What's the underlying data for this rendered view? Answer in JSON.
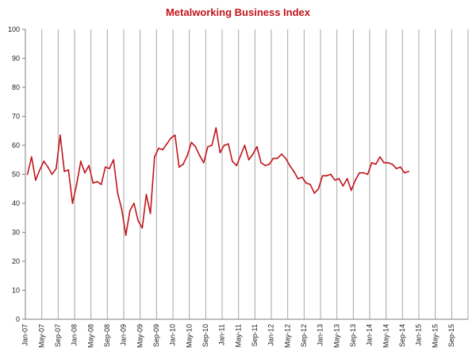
{
  "chart_data": {
    "type": "line",
    "title": "Metalworking Business Index",
    "xlabel": "",
    "ylabel": "",
    "ylim": [
      0,
      100
    ],
    "yticks": [
      0,
      10,
      20,
      30,
      40,
      50,
      60,
      70,
      80,
      90,
      100
    ],
    "x_start": "Jan-07",
    "x_end": "Dec-15",
    "xtick_labels": [
      "Jan-07",
      "May-07",
      "Sep-07",
      "Jan-08",
      "May-08",
      "Sep-08",
      "Jan-09",
      "May-09",
      "Sep-09",
      "Jan-10",
      "May-10",
      "Sep-10",
      "Jan-11",
      "May-11",
      "Sep-11",
      "Jan-12",
      "May-12",
      "Sep-12",
      "Jan-13",
      "May-13",
      "Sep-13",
      "Jan-14",
      "May-14",
      "Sep-14",
      "Jan-15",
      "May-15",
      "Sep-15"
    ],
    "grid": "vertical",
    "line_color": "#c0151b",
    "series": [
      {
        "values": [
          50.0,
          56.0,
          48.0,
          51.5,
          54.5,
          52.5,
          50.0,
          52.0,
          63.5,
          51.0,
          51.5,
          40.0,
          46.5,
          54.5,
          50.5,
          53.0,
          47.0,
          47.5,
          46.5,
          52.5,
          52.0,
          55.0,
          43.5,
          38.0,
          29.0,
          37.5,
          40.0,
          34.0,
          31.5,
          43.0,
          36.5,
          56.0,
          59.0,
          58.5,
          60.5,
          62.5,
          63.5,
          52.5,
          53.5,
          56.5,
          61.0,
          59.5,
          56.5,
          54.0,
          59.5,
          60.0,
          66.0,
          57.5,
          60.0,
          60.5,
          54.5,
          53.0,
          56.5,
          60.0,
          55.0,
          57.0,
          59.5,
          54.0,
          53.0,
          53.5,
          55.5,
          55.5,
          57.0,
          55.5,
          53.0,
          51.0,
          48.5,
          49.0,
          47.0,
          46.5,
          43.5,
          45.0,
          49.5,
          49.5,
          50.0,
          48.0,
          48.5,
          46.0,
          48.5,
          44.5,
          48.0,
          50.5,
          50.5,
          50.0,
          54.0,
          53.5,
          56.0,
          54.0,
          54.0,
          53.5,
          52.0,
          52.5,
          50.5,
          51.0
        ]
      }
    ]
  }
}
